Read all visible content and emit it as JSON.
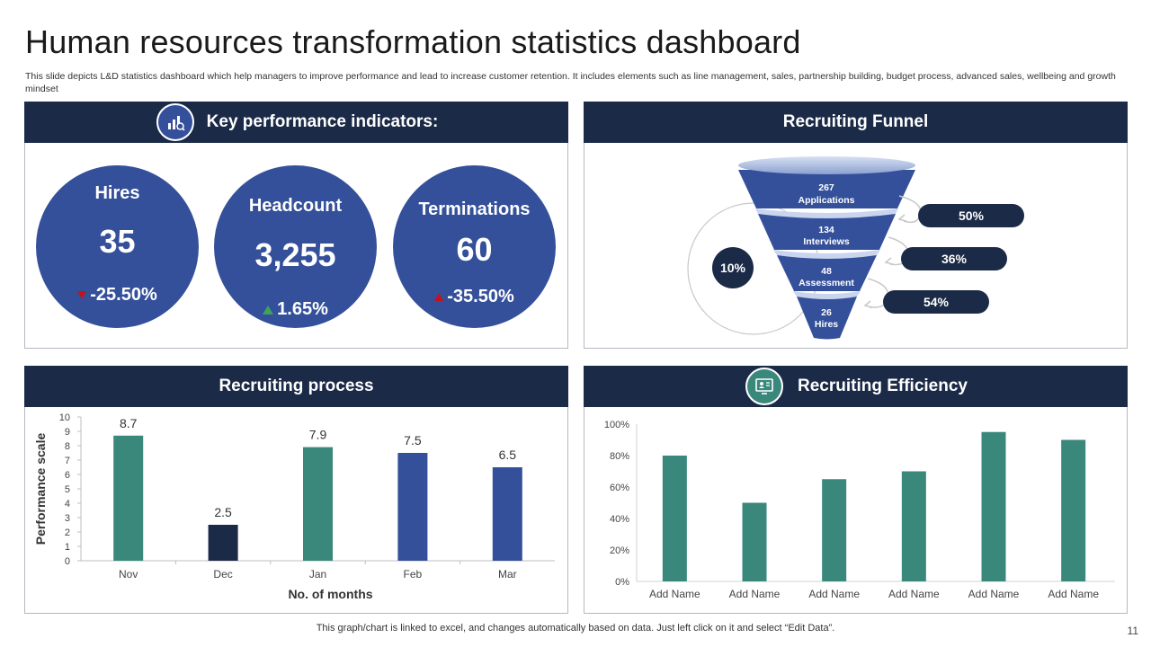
{
  "header": {
    "title": "Human resources transformation statistics dashboard",
    "subtitle": "This slide depicts L&D statistics dashboard which help managers to improve performance and lead to increase customer retention. It includes elements such as line management, sales, partnership building, budget process, advanced sales, wellbeing and growth mindset"
  },
  "kpi": {
    "title": "Key performance indicators:",
    "icon": "chart-badge-icon",
    "items": [
      {
        "label": "Hires",
        "value": "35",
        "change": "-25.50%",
        "trend": "down"
      },
      {
        "label": "Headcount",
        "value": "3,255",
        "change": "1.65%",
        "trend": "up"
      },
      {
        "label": "Terminations",
        "value": "60",
        "change": "-35.50%",
        "trend": "up"
      }
    ]
  },
  "funnel": {
    "title": "Recruiting Funnel",
    "stages": [
      {
        "count": "267",
        "label": "Applications"
      },
      {
        "count": "134",
        "label": "Interviews"
      },
      {
        "count": "48",
        "label": "Assessment"
      },
      {
        "count": "26",
        "label": "Hires"
      }
    ],
    "rates": [
      "50%",
      "36%",
      "54%"
    ],
    "overall": "10%"
  },
  "process": {
    "title": "Recruiting process"
  },
  "efficiency": {
    "title": "Recruiting Efficiency",
    "icon": "monitor-person-icon"
  },
  "colors": {
    "navy": "#1b2a47",
    "blue": "#34509a",
    "teal": "#3a877c",
    "red": "#c0141c",
    "green": "#3fa35b"
  },
  "chart_data": [
    {
      "type": "bar",
      "title": "",
      "categories": [
        "Nov",
        "Dec",
        "Jan",
        "Feb",
        "Mar"
      ],
      "values": [
        8.7,
        2.5,
        7.9,
        7.5,
        6.5
      ],
      "bar_colors": [
        "#3a877c",
        "#1b2a47",
        "#3a877c",
        "#34509a",
        "#34509a"
      ],
      "xlabel": "No. of months",
      "ylabel": "Performance scale",
      "ylim": [
        0,
        10
      ],
      "yticks": [
        0,
        1,
        2,
        3,
        4,
        5,
        6,
        7,
        8,
        9,
        10
      ],
      "data_labels": true,
      "grid": false
    },
    {
      "type": "bar",
      "title": "",
      "categories": [
        "Add Name",
        "Add Name",
        "Add Name",
        "Add Name",
        "Add Name",
        "Add Name"
      ],
      "values": [
        0.8,
        0.5,
        0.65,
        0.7,
        0.95,
        0.9
      ],
      "ylim": [
        0,
        1
      ],
      "yticks": [
        "0%",
        "20%",
        "40%",
        "60%",
        "80%",
        "100%"
      ],
      "xlabel": "",
      "ylabel": "",
      "data_labels": false,
      "grid": false
    }
  ],
  "footer": {
    "note": "This graph/chart is linked to excel,  and changes automatically based on data. Just left click on it and select “Edit Data”.",
    "page": "11"
  }
}
